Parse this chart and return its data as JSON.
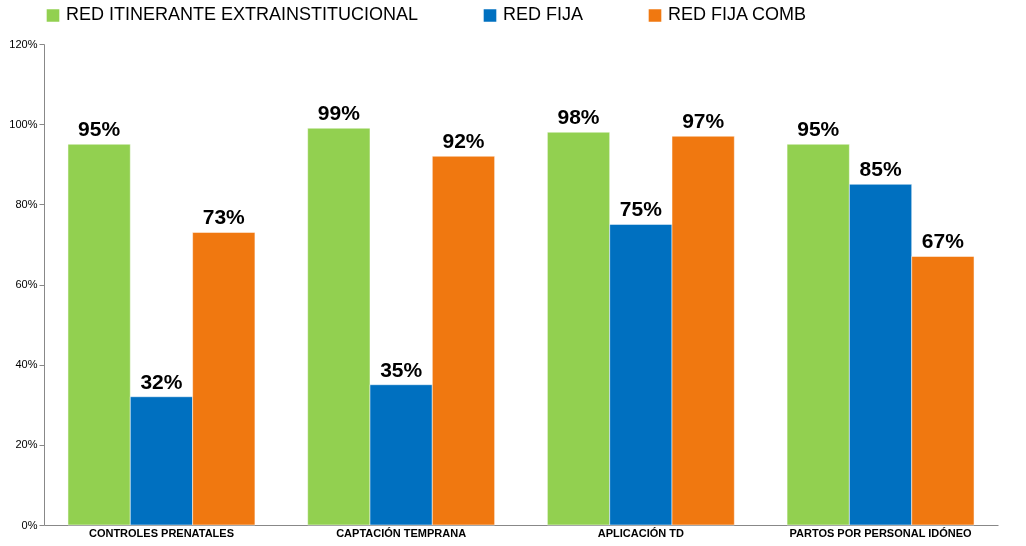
{
  "chart_data": {
    "type": "bar",
    "categories": [
      "CONTROLES PRENATALES",
      "CAPTACIÓN TEMPRANA",
      "APLICACIÓN TD",
      "PARTOS POR PERSONAL IDÓNEO"
    ],
    "series": [
      {
        "name": "RED ITINERANTE EXTRAINSTITUCIONAL",
        "color": "#92d050",
        "values": [
          95,
          99,
          98,
          95
        ],
        "value_labels": [
          "95%",
          "99%",
          "98%",
          "95%"
        ]
      },
      {
        "name": "RED FIJA",
        "color": "#0070c0",
        "values": [
          32,
          35,
          75,
          85
        ],
        "value_labels": [
          "32%",
          "35%",
          "75%",
          "85%"
        ]
      },
      {
        "name": "RED FIJA COMB",
        "color": "#f07810",
        "values": [
          73,
          92,
          97,
          67
        ],
        "value_labels": [
          "73%",
          "92%",
          "97%",
          "67%"
        ]
      }
    ],
    "ylim": [
      0,
      120
    ],
    "yticks": [
      {
        "value": 0,
        "label": "0%"
      },
      {
        "value": 20,
        "label": "20%"
      },
      {
        "value": 40,
        "label": "40%"
      },
      {
        "value": 60,
        "label": "60%"
      },
      {
        "value": 80,
        "label": "80%"
      },
      {
        "value": 100,
        "label": "100%"
      },
      {
        "value": 120,
        "label": "120%"
      }
    ],
    "legend": "top",
    "grid": false
  }
}
